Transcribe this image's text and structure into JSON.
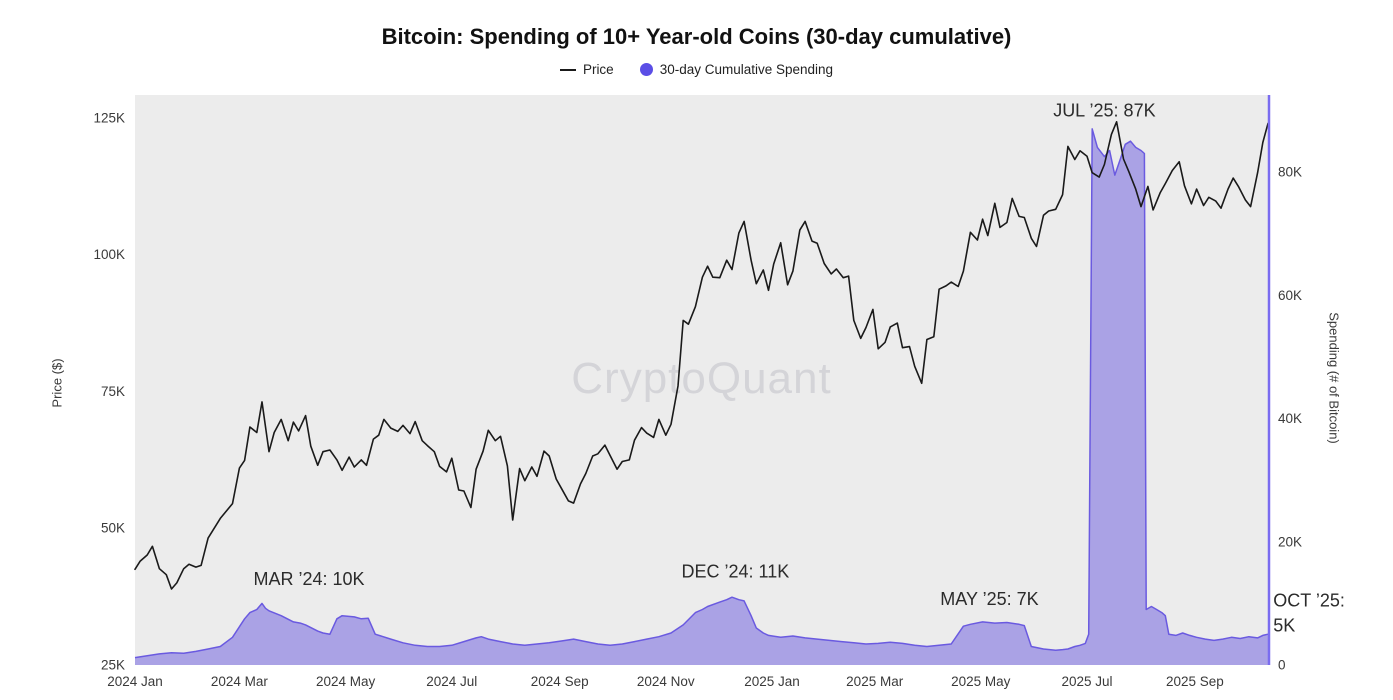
{
  "chart_data": {
    "type": "line+area",
    "title": "Bitcoin: Spending of 10+ Year-old Coins (30-day cumulative)",
    "watermark": "CryptoQuant",
    "legend": [
      {
        "label": "Price",
        "marker": "line"
      },
      {
        "label": "30-day Cumulative Spending",
        "marker": "dot"
      }
    ],
    "colors": {
      "plot_bg": "#ececec",
      "price_line": "#1a1a1a",
      "area_fill": "rgba(104,88,222,0.5)",
      "area_stroke": "#6a5ae0",
      "legend_dot": "#5b4ee6",
      "right_axis": "#7a6cf0",
      "watermark_color": "#d4d4d8",
      "annotation": "#2b2b2b"
    },
    "x_axis": {
      "total_days": 651,
      "ticks": [
        {
          "label": "2024 Jan",
          "day": 0
        },
        {
          "label": "2024 Mar",
          "day": 60
        },
        {
          "label": "2024 May",
          "day": 121
        },
        {
          "label": "2024 Jul",
          "day": 182
        },
        {
          "label": "2024 Sep",
          "day": 244
        },
        {
          "label": "2024 Nov",
          "day": 305
        },
        {
          "label": "2025 Jan",
          "day": 366
        },
        {
          "label": "2025 Mar",
          "day": 425
        },
        {
          "label": "2025 May",
          "day": 486
        },
        {
          "label": "2025 Jul",
          "day": 547
        },
        {
          "label": "2025 Sep",
          "day": 609
        }
      ]
    },
    "price_axis": {
      "label": "Price ($)",
      "unit": "USD thousands",
      "domain": [
        25,
        129.2
      ],
      "ticks": [
        {
          "label": "25K",
          "value": 25
        },
        {
          "label": "50K",
          "value": 50
        },
        {
          "label": "75K",
          "value": 75
        },
        {
          "label": "100K",
          "value": 100
        },
        {
          "label": "125K",
          "value": 125
        }
      ]
    },
    "spending_axis": {
      "label": "Spending (# of Bitcoin)",
      "unit": "BTC thousands",
      "domain": [
        0,
        92.5
      ],
      "ticks": [
        {
          "label": "0",
          "value": 0
        },
        {
          "label": "20K",
          "value": 20
        },
        {
          "label": "40K",
          "value": 40
        },
        {
          "label": "60K",
          "value": 60
        },
        {
          "label": "80K",
          "value": 80
        }
      ]
    },
    "price_points": [
      [
        0,
        42.5
      ],
      [
        3,
        44.0
      ],
      [
        7,
        45.1
      ],
      [
        10,
        46.7
      ],
      [
        14,
        42.6
      ],
      [
        18,
        41.5
      ],
      [
        21,
        38.9
      ],
      [
        24,
        40.0
      ],
      [
        28,
        42.6
      ],
      [
        31,
        43.4
      ],
      [
        35,
        42.9
      ],
      [
        38,
        43.2
      ],
      [
        42,
        48.2
      ],
      [
        49,
        51.8
      ],
      [
        56,
        54.5
      ],
      [
        60,
        61.0
      ],
      [
        63,
        62.4
      ],
      [
        66,
        68.5
      ],
      [
        70,
        67.5
      ],
      [
        73,
        73.1
      ],
      [
        77,
        64.0
      ],
      [
        80,
        67.5
      ],
      [
        84,
        69.9
      ],
      [
        88,
        66.0
      ],
      [
        91,
        69.4
      ],
      [
        94,
        67.8
      ],
      [
        98,
        70.6
      ],
      [
        101,
        65.0
      ],
      [
        105,
        61.5
      ],
      [
        108,
        64.0
      ],
      [
        112,
        64.3
      ],
      [
        116,
        62.5
      ],
      [
        119,
        60.6
      ],
      [
        123,
        63.0
      ],
      [
        126,
        61.2
      ],
      [
        130,
        62.5
      ],
      [
        133,
        61.5
      ],
      [
        137,
        66.3
      ],
      [
        140,
        67.0
      ],
      [
        143,
        69.9
      ],
      [
        147,
        68.3
      ],
      [
        151,
        67.7
      ],
      [
        154,
        68.8
      ],
      [
        158,
        67.3
      ],
      [
        161,
        69.5
      ],
      [
        165,
        66.0
      ],
      [
        168,
        65.1
      ],
      [
        172,
        64.0
      ],
      [
        175,
        61.3
      ],
      [
        179,
        60.3
      ],
      [
        182,
        62.8
      ],
      [
        186,
        57.0
      ],
      [
        189,
        56.8
      ],
      [
        193,
        53.8
      ],
      [
        196,
        60.8
      ],
      [
        200,
        64.1
      ],
      [
        203,
        67.9
      ],
      [
        207,
        66.0
      ],
      [
        210,
        66.8
      ],
      [
        214,
        61.4
      ],
      [
        217,
        51.5
      ],
      [
        221,
        60.9
      ],
      [
        224,
        58.7
      ],
      [
        228,
        61.2
      ],
      [
        231,
        59.5
      ],
      [
        235,
        64.1
      ],
      [
        238,
        63.2
      ],
      [
        242,
        59.0
      ],
      [
        245,
        57.3
      ],
      [
        249,
        55.0
      ],
      [
        252,
        54.6
      ],
      [
        256,
        58.1
      ],
      [
        259,
        60.0
      ],
      [
        263,
        63.2
      ],
      [
        266,
        63.6
      ],
      [
        270,
        65.2
      ],
      [
        273,
        63.3
      ],
      [
        277,
        60.8
      ],
      [
        280,
        62.2
      ],
      [
        284,
        62.5
      ],
      [
        287,
        66.1
      ],
      [
        291,
        68.4
      ],
      [
        294,
        67.4
      ],
      [
        298,
        66.6
      ],
      [
        301,
        69.9
      ],
      [
        305,
        67.0
      ],
      [
        308,
        69.0
      ],
      [
        312,
        76.0
      ],
      [
        315,
        88.0
      ],
      [
        318,
        87.3
      ],
      [
        322,
        90.5
      ],
      [
        326,
        95.9
      ],
      [
        329,
        97.9
      ],
      [
        332,
        95.9
      ],
      [
        336,
        95.8
      ],
      [
        340,
        99.0
      ],
      [
        343,
        97.3
      ],
      [
        347,
        104.0
      ],
      [
        350,
        106.1
      ],
      [
        354,
        99.0
      ],
      [
        357,
        94.7
      ],
      [
        361,
        97.2
      ],
      [
        364,
        93.5
      ],
      [
        367,
        98.3
      ],
      [
        371,
        102.2
      ],
      [
        375,
        94.5
      ],
      [
        378,
        97.0
      ],
      [
        382,
        104.5
      ],
      [
        385,
        106.1
      ],
      [
        389,
        102.5
      ],
      [
        392,
        102.1
      ],
      [
        396,
        98.4
      ],
      [
        400,
        96.5
      ],
      [
        403,
        97.4
      ],
      [
        407,
        95.8
      ],
      [
        410,
        96.1
      ],
      [
        413,
        88.0
      ],
      [
        417,
        84.7
      ],
      [
        420,
        86.7
      ],
      [
        424,
        90.0
      ],
      [
        427,
        82.8
      ],
      [
        431,
        84.0
      ],
      [
        434,
        86.8
      ],
      [
        438,
        87.5
      ],
      [
        441,
        83.0
      ],
      [
        445,
        83.2
      ],
      [
        448,
        79.6
      ],
      [
        452,
        76.5
      ],
      [
        455,
        84.5
      ],
      [
        459,
        85.0
      ],
      [
        462,
        93.7
      ],
      [
        466,
        94.3
      ],
      [
        469,
        95.0
      ],
      [
        473,
        94.2
      ],
      [
        476,
        97.0
      ],
      [
        480,
        104.1
      ],
      [
        484,
        102.7
      ],
      [
        487,
        106.5
      ],
      [
        490,
        103.5
      ],
      [
        494,
        109.4
      ],
      [
        497,
        105.0
      ],
      [
        501,
        105.9
      ],
      [
        504,
        110.3
      ],
      [
        508,
        107.0
      ],
      [
        511,
        106.8
      ],
      [
        515,
        103.0
      ],
      [
        518,
        101.5
      ],
      [
        522,
        107.2
      ],
      [
        525,
        108.0
      ],
      [
        529,
        108.3
      ],
      [
        533,
        111.0
      ],
      [
        536,
        119.8
      ],
      [
        540,
        117.4
      ],
      [
        543,
        119.0
      ],
      [
        547,
        118.0
      ],
      [
        550,
        115.0
      ],
      [
        554,
        114.2
      ],
      [
        557,
        116.5
      ],
      [
        561,
        122.0
      ],
      [
        564,
        124.3
      ],
      [
        568,
        117.5
      ],
      [
        571,
        115.2
      ],
      [
        575,
        112.0
      ],
      [
        578,
        108.8
      ],
      [
        582,
        112.5
      ],
      [
        585,
        108.2
      ],
      [
        589,
        111.3
      ],
      [
        592,
        113.0
      ],
      [
        596,
        115.4
      ],
      [
        600,
        117.0
      ],
      [
        603,
        112.6
      ],
      [
        607,
        109.3
      ],
      [
        610,
        112.0
      ],
      [
        614,
        109.0
      ],
      [
        617,
        110.5
      ],
      [
        621,
        109.8
      ],
      [
        624,
        108.5
      ],
      [
        628,
        112.0
      ],
      [
        631,
        114.0
      ],
      [
        634,
        112.5
      ],
      [
        638,
        110.0
      ],
      [
        641,
        108.8
      ],
      [
        645,
        115.0
      ],
      [
        648,
        120.5
      ],
      [
        651,
        124.0
      ]
    ],
    "spending_points": [
      [
        0,
        1.2
      ],
      [
        7,
        1.5
      ],
      [
        14,
        1.8
      ],
      [
        21,
        2.0
      ],
      [
        28,
        1.9
      ],
      [
        35,
        2.2
      ],
      [
        42,
        2.6
      ],
      [
        49,
        3.0
      ],
      [
        56,
        4.5
      ],
      [
        63,
        7.5
      ],
      [
        66,
        8.5
      ],
      [
        70,
        9.0
      ],
      [
        73,
        10.0
      ],
      [
        75,
        9.2
      ],
      [
        77,
        8.8
      ],
      [
        84,
        8.0
      ],
      [
        91,
        7.0
      ],
      [
        95,
        6.8
      ],
      [
        98,
        6.5
      ],
      [
        105,
        5.5
      ],
      [
        108,
        5.2
      ],
      [
        112,
        5.0
      ],
      [
        116,
        7.5
      ],
      [
        119,
        8.0
      ],
      [
        126,
        7.8
      ],
      [
        130,
        7.5
      ],
      [
        134,
        7.6
      ],
      [
        138,
        5.0
      ],
      [
        147,
        4.2
      ],
      [
        154,
        3.6
      ],
      [
        161,
        3.2
      ],
      [
        168,
        3.0
      ],
      [
        175,
        3.0
      ],
      [
        182,
        3.2
      ],
      [
        189,
        3.8
      ],
      [
        196,
        4.4
      ],
      [
        199,
        4.6
      ],
      [
        203,
        4.2
      ],
      [
        210,
        3.8
      ],
      [
        217,
        3.4
      ],
      [
        224,
        3.2
      ],
      [
        231,
        3.4
      ],
      [
        238,
        3.6
      ],
      [
        245,
        3.9
      ],
      [
        252,
        4.2
      ],
      [
        259,
        3.8
      ],
      [
        266,
        3.4
      ],
      [
        273,
        3.2
      ],
      [
        280,
        3.4
      ],
      [
        287,
        3.8
      ],
      [
        294,
        4.2
      ],
      [
        301,
        4.6
      ],
      [
        308,
        5.2
      ],
      [
        315,
        6.5
      ],
      [
        322,
        8.5
      ],
      [
        326,
        9.0
      ],
      [
        329,
        9.5
      ],
      [
        336,
        10.2
      ],
      [
        340,
        10.6
      ],
      [
        343,
        11.0
      ],
      [
        347,
        10.6
      ],
      [
        350,
        10.4
      ],
      [
        354,
        8.0
      ],
      [
        357,
        6.0
      ],
      [
        361,
        5.2
      ],
      [
        364,
        4.8
      ],
      [
        371,
        4.5
      ],
      [
        378,
        4.7
      ],
      [
        385,
        4.4
      ],
      [
        392,
        4.2
      ],
      [
        399,
        4.0
      ],
      [
        406,
        3.8
      ],
      [
        413,
        3.6
      ],
      [
        420,
        3.4
      ],
      [
        427,
        3.5
      ],
      [
        434,
        3.7
      ],
      [
        441,
        3.5
      ],
      [
        448,
        3.2
      ],
      [
        455,
        3.0
      ],
      [
        462,
        3.2
      ],
      [
        469,
        3.4
      ],
      [
        476,
        6.3
      ],
      [
        480,
        6.6
      ],
      [
        487,
        7.0
      ],
      [
        494,
        6.8
      ],
      [
        501,
        6.9
      ],
      [
        508,
        6.6
      ],
      [
        511,
        6.4
      ],
      [
        515,
        3.0
      ],
      [
        522,
        2.6
      ],
      [
        529,
        2.4
      ],
      [
        533,
        2.5
      ],
      [
        536,
        2.6
      ],
      [
        540,
        3.0
      ],
      [
        543,
        3.2
      ],
      [
        546,
        3.5
      ],
      [
        548,
        5.0
      ],
      [
        550,
        87.0
      ],
      [
        553,
        84.0
      ],
      [
        557,
        82.5
      ],
      [
        560,
        83.5
      ],
      [
        563,
        79.5
      ],
      [
        566,
        82.0
      ],
      [
        569,
        84.5
      ],
      [
        572,
        85.0
      ],
      [
        575,
        84.0
      ],
      [
        578,
        83.5
      ],
      [
        580,
        83.0
      ],
      [
        581,
        9.0
      ],
      [
        584,
        9.5
      ],
      [
        587,
        9.0
      ],
      [
        590,
        8.5
      ],
      [
        592,
        8.0
      ],
      [
        594,
        5.0
      ],
      [
        598,
        4.8
      ],
      [
        602,
        5.2
      ],
      [
        606,
        4.8
      ],
      [
        610,
        4.5
      ],
      [
        615,
        4.2
      ],
      [
        620,
        4.0
      ],
      [
        625,
        4.2
      ],
      [
        630,
        4.5
      ],
      [
        635,
        4.3
      ],
      [
        640,
        4.6
      ],
      [
        645,
        4.4
      ],
      [
        648,
        4.8
      ],
      [
        651,
        5.0
      ]
    ],
    "annotations": [
      {
        "lines": [
          "MAR ’24: 10K"
        ],
        "day": 100,
        "value": 13.0,
        "align": "middle"
      },
      {
        "lines": [
          "DEC ’24: 11K"
        ],
        "day": 345,
        "value": 14.2,
        "align": "middle"
      },
      {
        "lines": [
          "MAY ’25: 7K"
        ],
        "day": 491,
        "value": 9.7,
        "align": "middle"
      },
      {
        "lines": [
          "JUL ’25: 87K"
        ],
        "day": 557,
        "value": 89.0,
        "align": "middle"
      },
      {
        "lines": [
          "OCT ’25:",
          "5K"
        ],
        "day": 654,
        "value": 9.5,
        "align": "start"
      }
    ]
  }
}
